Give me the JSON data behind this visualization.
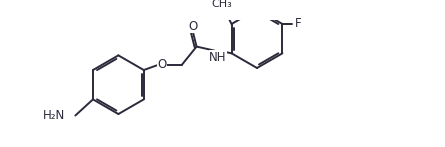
{
  "bg_color": "#ffffff",
  "line_color": "#2a2a3a",
  "line_width": 1.4,
  "font_size": 8.5,
  "fig_width": 4.45,
  "fig_height": 1.47,
  "dpi": 100,
  "xlim": [
    0.0,
    11.5
  ],
  "ylim": [
    -0.5,
    3.8
  ]
}
